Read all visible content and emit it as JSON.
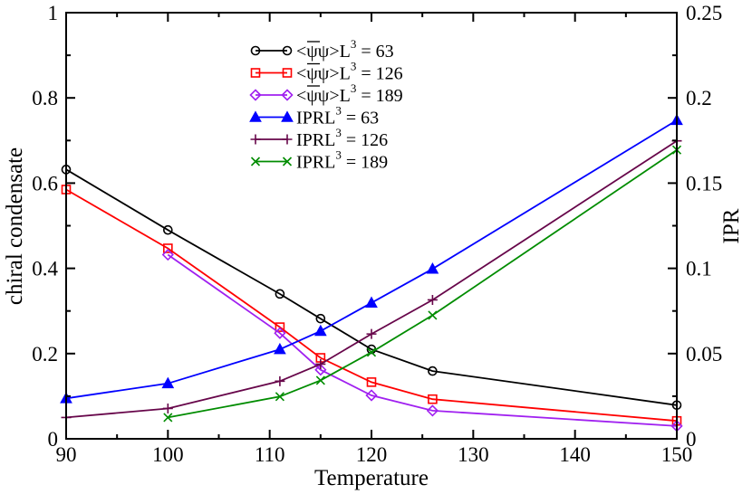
{
  "chart_data": {
    "type": "line",
    "x_axis": {
      "label": "Temperature",
      "range": [
        90,
        150
      ],
      "ticks": [
        90,
        100,
        110,
        120,
        130,
        140,
        150
      ],
      "tick_labels": [
        "90",
        "100",
        "110",
        "120",
        "130",
        "140",
        "150"
      ]
    },
    "y_axis_left": {
      "label": "chiral condensate",
      "range": [
        0,
        1
      ],
      "ticks": [
        0,
        0.2,
        0.4,
        0.6,
        0.8,
        1
      ],
      "tick_labels": [
        "0",
        "0.2",
        "0.4",
        "0.6",
        "0.8",
        "1"
      ]
    },
    "y_axis_right": {
      "label": "IPR",
      "range": [
        0,
        0.25
      ],
      "ticks": [
        0,
        0.05,
        0.1,
        0.15,
        0.2,
        0.25
      ],
      "tick_labels": [
        "0",
        "0.05",
        "0.1",
        "0.15",
        "0.2",
        "0.25"
      ]
    },
    "legend_position": "top-center",
    "series": [
      {
        "name": "<ψψ> L3 = 63",
        "label_prefix": "<ψψ>",
        "label_L": "L",
        "label_exp": "3",
        "label_eq": "= 63",
        "overbar": true,
        "axis": "left",
        "marker": "circle",
        "color": "#000000",
        "x": [
          90,
          100,
          111,
          115,
          120,
          126,
          150
        ],
        "y": [
          0.632,
          0.49,
          0.34,
          0.282,
          0.21,
          0.159,
          0.079
        ]
      },
      {
        "name": "<ψψ> L3 = 126",
        "label_prefix": "<ψψ>",
        "label_L": "L",
        "label_exp": "3",
        "label_eq": "= 126",
        "overbar": true,
        "axis": "left",
        "marker": "square",
        "color": "#ff0000",
        "x": [
          90,
          100,
          111,
          115,
          120,
          126,
          150
        ],
        "y": [
          0.585,
          0.447,
          0.262,
          0.19,
          0.133,
          0.093,
          0.042
        ]
      },
      {
        "name": "<ψψ> L3 = 189",
        "label_prefix": "<ψψ>",
        "label_L": "L",
        "label_exp": "3",
        "label_eq": "= 189",
        "overbar": true,
        "axis": "left",
        "marker": "diamond",
        "color": "#a020f0",
        "x": [
          100,
          111,
          115,
          120,
          126,
          150
        ],
        "y": [
          0.432,
          0.248,
          0.162,
          0.102,
          0.066,
          0.03
        ]
      },
      {
        "name": "IPR L3 = 63",
        "label_prefix": "IPR",
        "label_L": "L",
        "label_exp": "3",
        "label_eq": "= 63",
        "overbar": false,
        "axis": "right",
        "marker": "triangle",
        "color": "#0000ff",
        "x": [
          90,
          100,
          111,
          115,
          120,
          126,
          150
        ],
        "y": [
          0.0237,
          0.0325,
          0.0525,
          0.0632,
          0.0798,
          0.0997,
          0.1869
        ]
      },
      {
        "name": "IPR L3 = 126",
        "label_prefix": "IPR",
        "label_L": "L",
        "label_exp": "3",
        "label_eq": "= 126",
        "overbar": false,
        "axis": "right",
        "marker": "plus",
        "color": "#67064a",
        "x": [
          90,
          100,
          111,
          115,
          120,
          126,
          150
        ],
        "y": [
          0.0125,
          0.0178,
          0.0338,
          0.0438,
          0.0615,
          0.0815,
          0.1748
        ]
      },
      {
        "name": "IPR L3 = 189",
        "label_prefix": "IPR",
        "label_L": "L",
        "label_exp": "3",
        "label_eq": "= 189",
        "overbar": false,
        "axis": "right",
        "marker": "x",
        "color": "#008c00",
        "x": [
          100,
          111,
          115,
          120,
          126,
          150
        ],
        "y": [
          0.0125,
          0.0248,
          0.0343,
          0.0508,
          0.0725,
          0.1695
        ]
      }
    ]
  }
}
